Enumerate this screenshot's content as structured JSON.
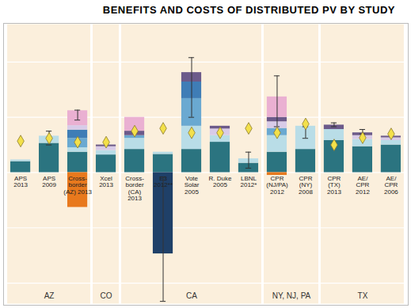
{
  "chart_data": {
    "type": "bar",
    "title": "BENEFITS AND COSTS OF DISTRIBUTED PV BY STUDY",
    "stacked": true,
    "grid": true,
    "tick_labels": false,
    "ylim": [
      -24,
      27
    ],
    "yticks": [
      -20,
      -10,
      0,
      10,
      20
    ],
    "categories": [
      "APS\n2013",
      "APS\n2009",
      "Cross-\nborder\n(AZ) 2013",
      "Xcel\n2013",
      "Cross-\nborder\n(CA)\n2013",
      "E3\n2012**",
      "Vote\nSolar\n2005",
      "R. Duke\n2005",
      "LBNL\n2012*",
      "CPR\n(NJ/PA)\n2012",
      "CPR\n(NY)\n2008",
      "CPR\n(TX)\n2013",
      "AE/\nCPR\n2012",
      "AE/\nCPR\n2006"
    ],
    "groups": [
      "AZ",
      "AZ",
      "AZ",
      "CO",
      "CA",
      "CA",
      "CA",
      "CA",
      "CA",
      "NY, NJ, PA",
      "NY, NJ, PA",
      "TX",
      "TX",
      "TX"
    ],
    "series": [
      {
        "color": "#2b7480",
        "values": [
          2,
          5.3,
          3.7,
          3.2,
          4.2,
          3.3,
          4.2,
          5.5,
          1.7,
          3.7,
          4.2,
          5.8,
          4.7,
          5
        ]
      },
      {
        "color": "#b9dde7",
        "values": [
          0.3,
          1.3,
          0.8,
          0.8,
          2,
          0.4,
          4.2,
          1.2,
          0.8,
          3,
          4.2,
          2,
          1.3,
          0.8
        ]
      },
      {
        "color": "#6aa9d1",
        "values": [
          0,
          0,
          1.7,
          0,
          0.5,
          0,
          5,
          0,
          0,
          1.3,
          0,
          0,
          0,
          0
        ]
      },
      {
        "color": "#3f7db6",
        "values": [
          0,
          0,
          1.5,
          0,
          0,
          0,
          3,
          0,
          0,
          0,
          0,
          0,
          0,
          0
        ]
      },
      {
        "color": "#d8cbe8",
        "values": [
          0,
          0,
          0.8,
          0.7,
          0,
          0,
          0,
          1.2,
          0,
          1.2,
          0,
          0,
          0.7,
          0.5
        ]
      },
      {
        "color": "#6c5a8a",
        "values": [
          0,
          0,
          0,
          0.3,
          0.8,
          0,
          1.7,
          0.5,
          0,
          0.8,
          0,
          0.8,
          0.5,
          0.3
        ]
      },
      {
        "color": "#eab0d2",
        "values": [
          0,
          0,
          2.7,
          0,
          2.5,
          0,
          0,
          0,
          0,
          3.7,
          0,
          0,
          0,
          0
        ]
      },
      {
        "color": "#e8791d",
        "values": [
          0,
          0,
          -6.3,
          0,
          0,
          0,
          0,
          0,
          0,
          -0.5,
          0,
          0,
          0,
          0
        ]
      },
      {
        "color": "#1f4068",
        "values": [
          0,
          0,
          0,
          0,
          0,
          -14.7,
          0,
          0,
          0,
          0,
          0,
          0,
          0,
          0
        ]
      },
      {
        "type": "scatter",
        "marker": "diamond",
        "color": "#f3e04a",
        "values": [
          5.7,
          6.2,
          5.5,
          5.5,
          7.5,
          8,
          7.2,
          7.2,
          8,
          7.2,
          8.8,
          5,
          6.3,
          7
        ]
      }
    ],
    "error_bars": {
      "low": [
        null,
        5,
        9.5,
        null,
        null,
        -23.3,
        10,
        null,
        0.8,
        8.3,
        6.2,
        8.3,
        7,
        null
      ],
      "high": [
        null,
        7.5,
        11.3,
        null,
        null,
        -0.8,
        20.8,
        null,
        3.7,
        17.5,
        8.3,
        9,
        7.8,
        null
      ]
    }
  }
}
